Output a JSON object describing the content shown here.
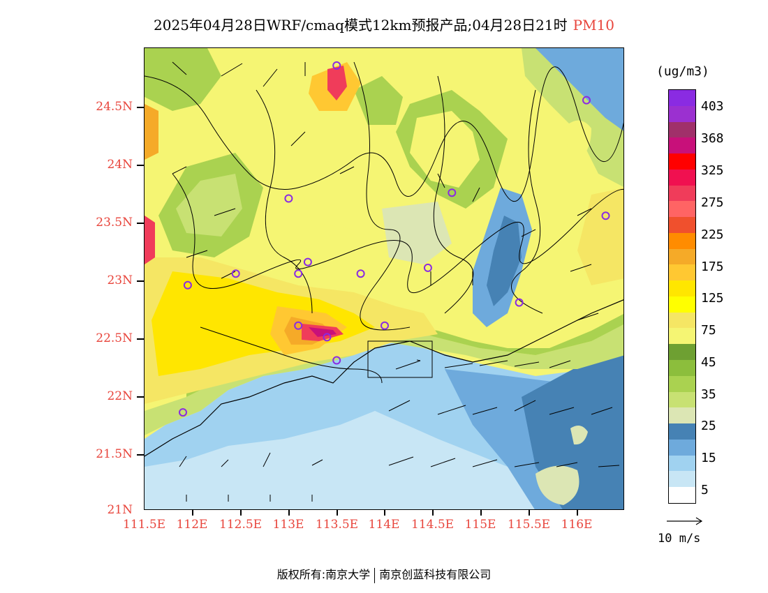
{
  "title": {
    "main": "2025年04月28日WRF/cmaq模式12km预报产品;04月28日21时",
    "pollutant": "PM10"
  },
  "axes": {
    "lat_labels": [
      "24.5N",
      "24N",
      "23.5N",
      "23N",
      "22.5N",
      "22N",
      "21.5N",
      "21N"
    ],
    "lon_labels": [
      "111.5E",
      "112E",
      "112.5E",
      "113E",
      "113.5E",
      "114E",
      "114.5E",
      "115E",
      "115.5E",
      "116E"
    ],
    "lat_range": [
      21.0,
      25.0
    ],
    "lon_range": [
      111.5,
      116.5
    ]
  },
  "legend": {
    "unit": "(ug/m3)",
    "labels": [
      "403",
      "368",
      "325",
      "275",
      "225",
      "175",
      "125",
      "75",
      "45",
      "35",
      "25",
      "15",
      "5"
    ],
    "colors": [
      "#8a2be2",
      "#9b30d0",
      "#a0306a",
      "#c8107a",
      "#ff0000",
      "#f01050",
      "#f03c5a",
      "#ff6464",
      "#f0502d",
      "#ff8c00",
      "#f5aa28",
      "#ffc832",
      "#ffe600",
      "#ffff00",
      "#f5e664",
      "#f5f573",
      "#6ea032",
      "#8cbe3c",
      "#aad250",
      "#c8e173",
      "#dce6b4",
      "#4682b4",
      "#6eaadc",
      "#a0d2f0",
      "#c8e6f5",
      "#ffffff"
    ]
  },
  "wind_reference": {
    "label": "10 m/s"
  },
  "footer": {
    "left": "版权所有:南京大学",
    "right": "南京创蓝科技有限公司"
  },
  "map": {
    "stations": [
      {
        "lon": 113.5,
        "lat": 24.85
      },
      {
        "lon": 116.1,
        "lat": 24.55
      },
      {
        "lon": 113.0,
        "lat": 23.7
      },
      {
        "lon": 114.7,
        "lat": 23.75
      },
      {
        "lon": 116.3,
        "lat": 23.55
      },
      {
        "lon": 111.95,
        "lat": 22.95
      },
      {
        "lon": 112.45,
        "lat": 23.05
      },
      {
        "lon": 113.1,
        "lat": 23.05
      },
      {
        "lon": 113.2,
        "lat": 23.15
      },
      {
        "lon": 113.75,
        "lat": 23.05
      },
      {
        "lon": 114.45,
        "lat": 23.1
      },
      {
        "lon": 115.4,
        "lat": 22.8
      },
      {
        "lon": 113.1,
        "lat": 22.6
      },
      {
        "lon": 113.4,
        "lat": 22.5
      },
      {
        "lon": 114.0,
        "lat": 22.6
      },
      {
        "lon": 113.5,
        "lat": 22.3
      },
      {
        "lon": 111.9,
        "lat": 21.85
      }
    ]
  }
}
